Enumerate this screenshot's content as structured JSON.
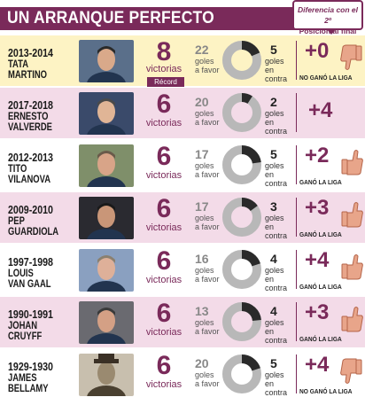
{
  "header": {
    "title": "UN ARRANQUE PERFECTO",
    "diff_line1": "Diferencia con el 2º",
    "diff_line2": "Posición al final Liga"
  },
  "colors": {
    "accent": "#7a2a5a",
    "row_highlight": "#fdf3c4",
    "row_pink": "#f3dbe8"
  },
  "rows": [
    {
      "years": "2013-2014",
      "name1": "TATA",
      "name2": "MARTINO",
      "wins": "8",
      "wins_label": "victorias",
      "badge": "Récord",
      "goals_for": "22",
      "goals_for_label1": "goles",
      "goals_for_label2": "a favor",
      "goals_against": "5",
      "goals_against_label1": "goles en",
      "goals_against_label2": "contra",
      "diff": "+0",
      "liga": "NO GANÓ LA LIGA",
      "thumb": "thumb-down-icon"
    },
    {
      "years": "2017-2018",
      "name1": "ERNESTO",
      "name2": "VALVERDE",
      "wins": "6",
      "wins_label": "victorias",
      "goals_for": "20",
      "goals_for_label1": "goles",
      "goals_for_label2": "a favor",
      "goals_against": "2",
      "goals_against_label1": "goles en",
      "goals_against_label2": "contra",
      "diff": "+4",
      "liga": "",
      "thumb": ""
    },
    {
      "years": "2012-2013",
      "name1": "TITO",
      "name2": "VILANOVA",
      "wins": "6",
      "wins_label": "victorias",
      "goals_for": "17",
      "goals_for_label1": "goles",
      "goals_for_label2": "a favor",
      "goals_against": "5",
      "goals_against_label1": "goles en",
      "goals_against_label2": "contra",
      "diff": "+2",
      "liga": "GANÓ LA LIGA",
      "thumb": "thumb-up-icon"
    },
    {
      "years": "2009-2010",
      "name1": "PEP",
      "name2": "GUARDIOLA",
      "wins": "6",
      "wins_label": "victorias",
      "goals_for": "17",
      "goals_for_label1": "goles",
      "goals_for_label2": "a favor",
      "goals_against": "3",
      "goals_against_label1": "goles en",
      "goals_against_label2": "contra",
      "diff": "+3",
      "liga": "GANÓ LA LIGA",
      "thumb": "thumb-up-icon"
    },
    {
      "years": "1997-1998",
      "name1": "LOUIS",
      "name2": "VAN GAAL",
      "wins": "6",
      "wins_label": "victorias",
      "goals_for": "16",
      "goals_for_label1": "goles",
      "goals_for_label2": "a favor",
      "goals_against": "4",
      "goals_against_label1": "goles en",
      "goals_against_label2": "contra",
      "diff": "+4",
      "liga": "GANÓ LA LIGA",
      "thumb": "thumb-up-icon"
    },
    {
      "years": "1990-1991",
      "name1": "JOHAN",
      "name2": "CRUYFF",
      "wins": "6",
      "wins_label": "victorias",
      "goals_for": "13",
      "goals_for_label1": "goles",
      "goals_for_label2": "a favor",
      "goals_against": "4",
      "goals_against_label1": "goles en",
      "goals_against_label2": "contra",
      "diff": "+3",
      "liga": "GANÓ LA LIGA",
      "thumb": "thumb-up-icon"
    },
    {
      "years": "1929-1930",
      "name1": "JAMES",
      "name2": "BELLAMY",
      "wins": "6",
      "wins_label": "victorias",
      "goals_for": "20",
      "goals_for_label1": "goles",
      "goals_for_label2": "a favor",
      "goals_against": "5",
      "goals_against_label1": "goles en",
      "goals_against_label2": "contra",
      "diff": "+4",
      "liga": "NO GANÓ LA LIGA",
      "thumb": "thumb-down-icon"
    }
  ]
}
